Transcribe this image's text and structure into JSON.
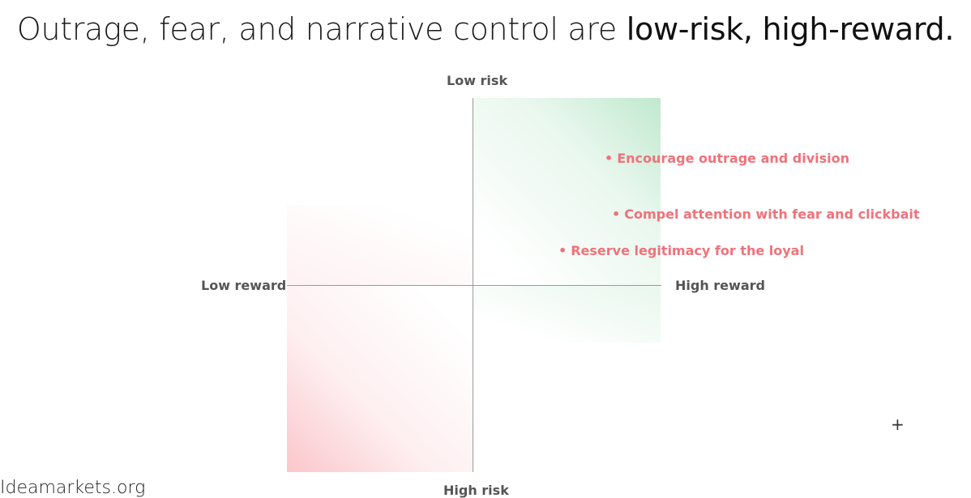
{
  "slide": {
    "title_prefix": "Outrage, fear, and narrative control are ",
    "title_emphasis": "low-risk, high-reward."
  },
  "axes": {
    "top": "Low risk",
    "bottom": "High risk",
    "left": "Low reward",
    "right": "High reward"
  },
  "points": [
    {
      "bullet": "•",
      "label": "Encourage outrage and division"
    },
    {
      "bullet": "•",
      "label": "Compel attention with fear and clickbait"
    },
    {
      "bullet": "•",
      "label": "Reserve legitimacy for the loyal"
    }
  ],
  "colors": {
    "low_risk_high_reward_quadrant": "#8dd6a6",
    "high_risk_low_reward_quadrant": "#f8a8b0",
    "point_text": "#f0727a",
    "axis_line": "#9a9a9a",
    "axis_label": "#555555"
  },
  "footer": {
    "source": "Ideamarkets.org"
  },
  "cursor": {
    "icon": "crosshair-icon",
    "glyph": "+"
  }
}
